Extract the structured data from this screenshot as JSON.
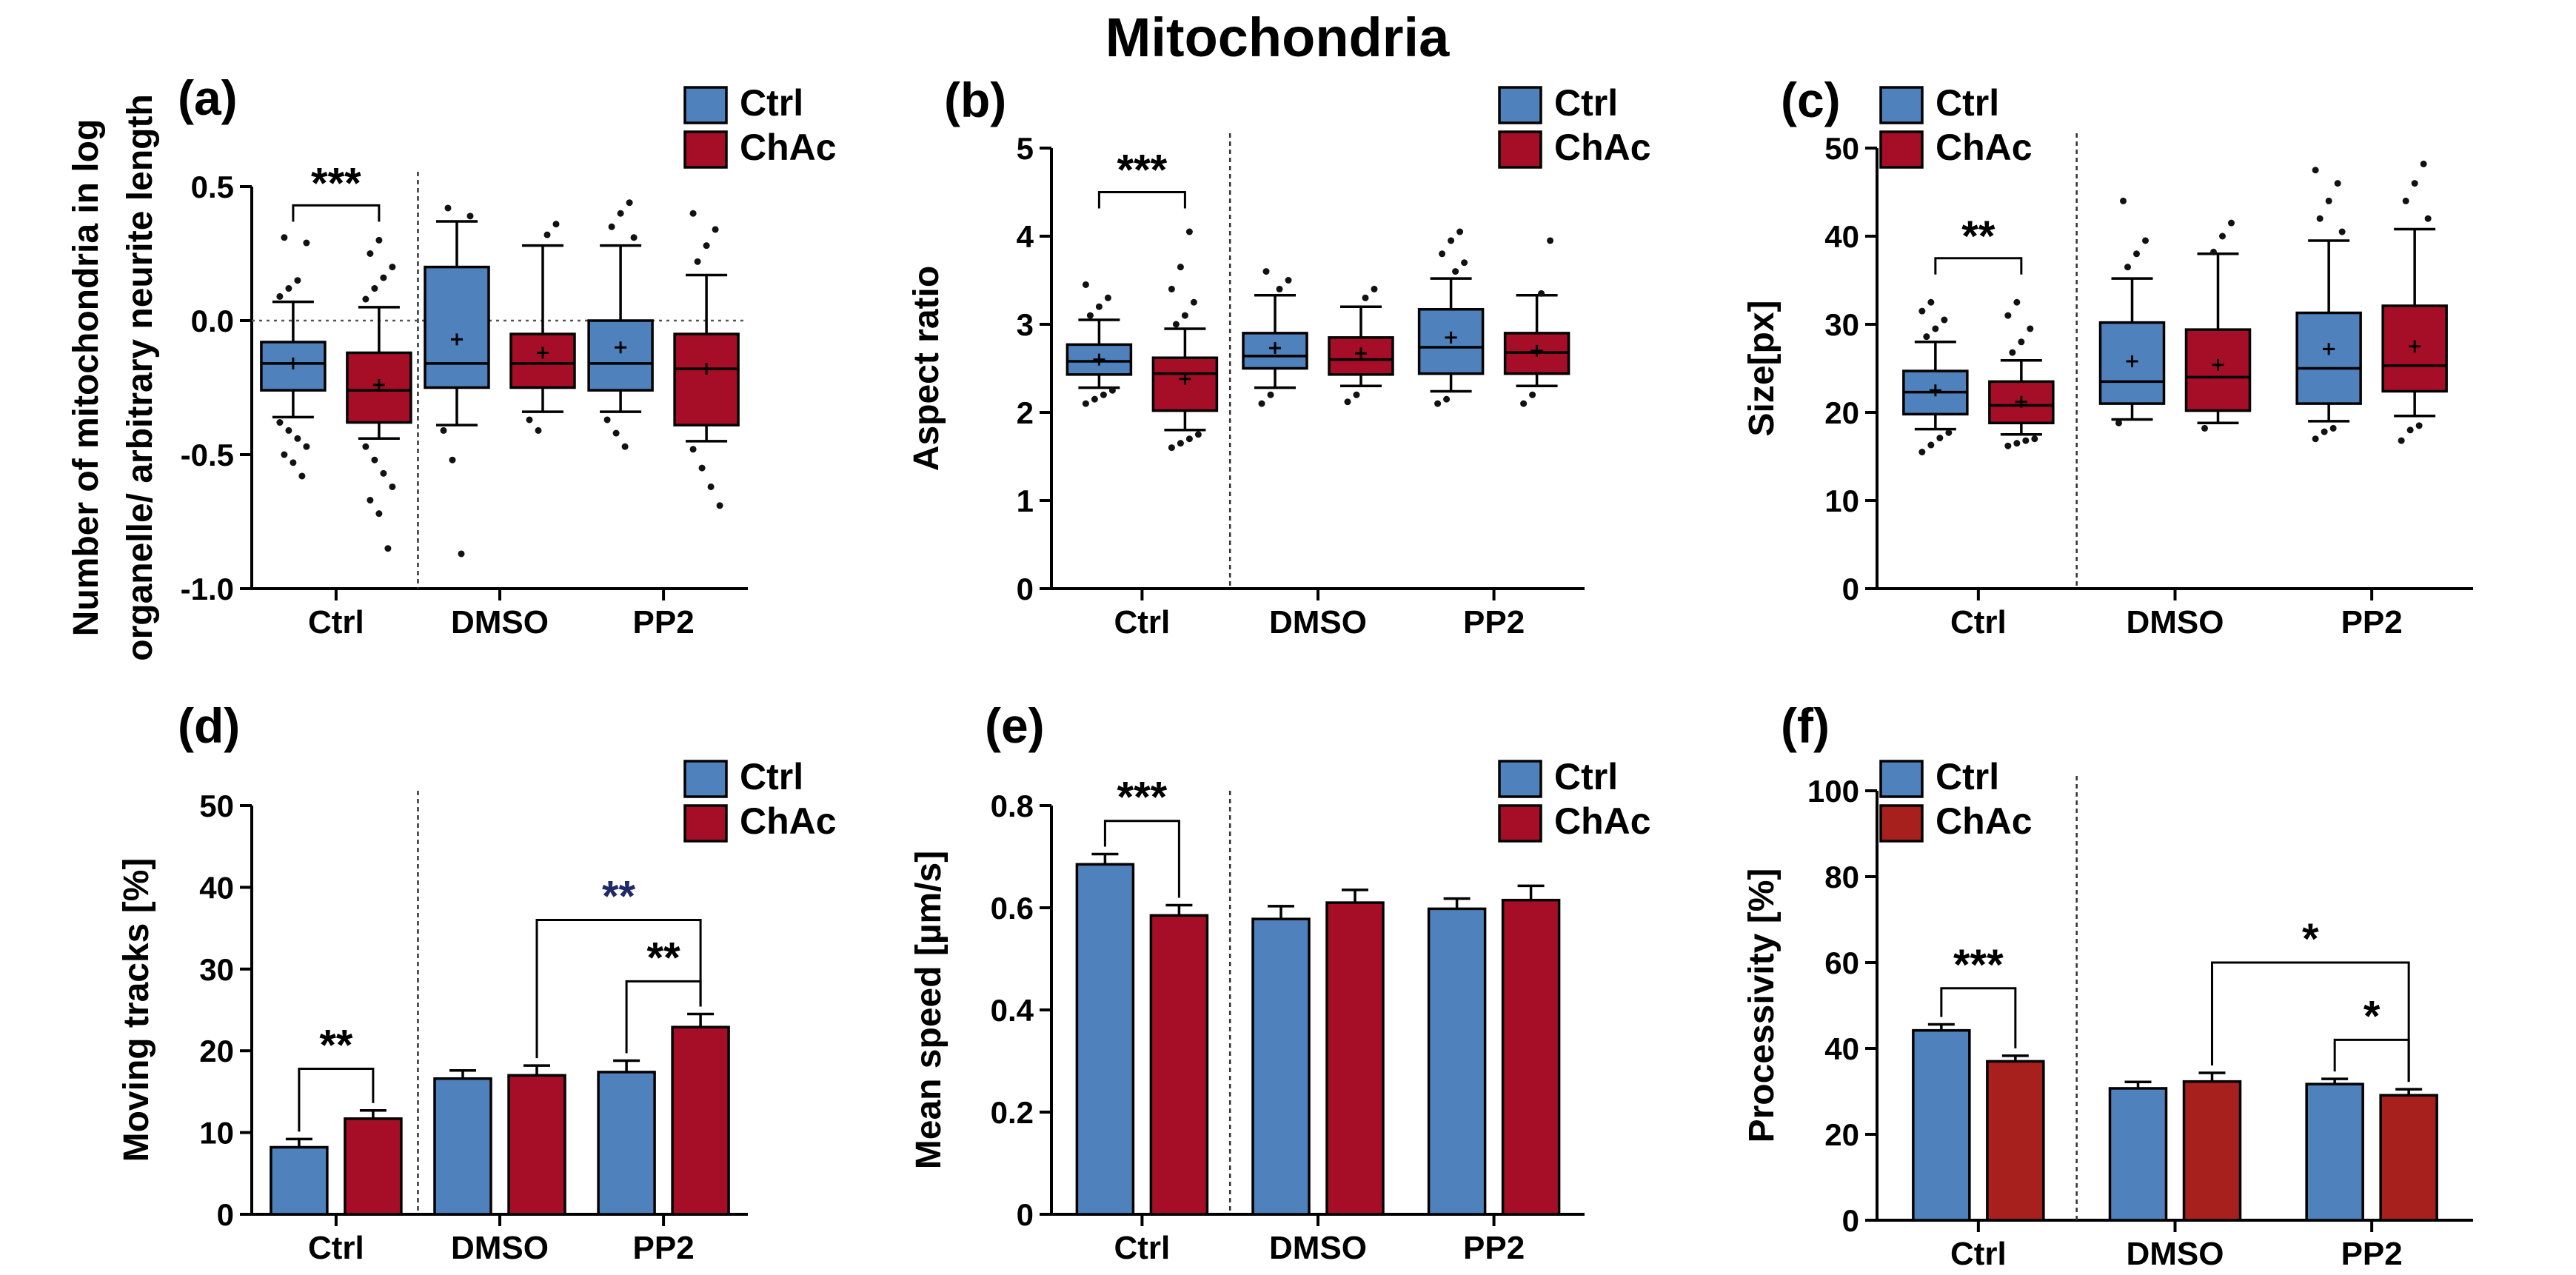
{
  "title": "Mitochondria",
  "colors": {
    "ctrl": "#4f81bd",
    "chac": "#a50e26",
    "chac_bar_f": "#a8201d",
    "dark_star": "#1f2a68",
    "axis": "#000000"
  },
  "legend": {
    "ctrl": "Ctrl",
    "chac": "ChAc"
  },
  "groups": [
    "Ctrl",
    "DMSO",
    "PP2"
  ],
  "chart_data": [
    {
      "panel": "(a)",
      "type": "box",
      "ylabel": "Number of mitochondria in log organelle/ arbitrary neurite length",
      "ylim": [
        -1.0,
        0.5
      ],
      "yticks": [
        "0.5",
        "0.0",
        "-0.5",
        "-1.0"
      ],
      "ytick_values": [
        0.5,
        0.0,
        -0.5,
        -1.0
      ],
      "reference_line": 0.0,
      "series": [
        {
          "name": "Ctrl",
          "group": "Ctrl",
          "q1": -0.26,
          "median": -0.16,
          "q3": -0.08,
          "wlo": -0.36,
          "whi": 0.07,
          "mean": -0.16,
          "outliers": [
            -0.38,
            -0.41,
            -0.44,
            -0.47,
            -0.5,
            -0.53,
            -0.58,
            0.09,
            0.12,
            0.15,
            0.29,
            0.31
          ]
        },
        {
          "name": "ChAc",
          "group": "Ctrl",
          "q1": -0.38,
          "median": -0.26,
          "q3": -0.12,
          "wlo": -0.44,
          "whi": 0.05,
          "mean": -0.24,
          "outliers": [
            -0.47,
            -0.52,
            -0.57,
            -0.62,
            -0.67,
            -0.72,
            -0.85,
            0.08,
            0.12,
            0.16,
            0.2,
            0.25,
            0.3
          ]
        },
        {
          "name": "Ctrl",
          "group": "DMSO",
          "q1": -0.25,
          "median": -0.16,
          "q3": 0.2,
          "wlo": -0.39,
          "whi": 0.37,
          "mean": -0.07,
          "outliers": [
            -0.41,
            -0.52,
            -0.87,
            0.39,
            0.42
          ]
        },
        {
          "name": "ChAc",
          "group": "DMSO",
          "q1": -0.25,
          "median": -0.16,
          "q3": -0.05,
          "wlo": -0.34,
          "whi": 0.28,
          "mean": -0.12,
          "outliers": [
            -0.37,
            -0.41,
            0.32,
            0.36
          ]
        },
        {
          "name": "Ctrl",
          "group": "PP2",
          "q1": -0.26,
          "median": -0.16,
          "q3": 0.0,
          "wlo": -0.34,
          "whi": 0.28,
          "mean": -0.1,
          "outliers": [
            -0.37,
            -0.42,
            -0.47,
            0.31,
            0.35,
            0.4,
            0.44
          ]
        },
        {
          "name": "ChAc",
          "group": "PP2",
          "q1": -0.39,
          "median": -0.18,
          "q3": -0.05,
          "wlo": -0.45,
          "whi": 0.17,
          "mean": -0.18,
          "outliers": [
            -0.48,
            -0.55,
            -0.62,
            -0.69,
            0.22,
            0.28,
            0.34,
            0.4
          ]
        }
      ],
      "annotations": [
        {
          "text": "***",
          "group": "Ctrl",
          "bracket_y": 0.43,
          "color": "#000000"
        }
      ]
    },
    {
      "panel": "(b)",
      "type": "box",
      "ylabel": "Aspect ratio",
      "ylim": [
        0,
        5
      ],
      "yticks": [
        "5",
        "4",
        "3",
        "2",
        "1",
        "0"
      ],
      "ytick_values": [
        5,
        4,
        3,
        2,
        1,
        0
      ],
      "series": [
        {
          "name": "Ctrl",
          "group": "Ctrl",
          "q1": 2.43,
          "median": 2.58,
          "q3": 2.77,
          "wlo": 2.28,
          "whi": 3.05,
          "mean": 2.6,
          "outliers": [
            2.1,
            2.15,
            2.2,
            2.25,
            3.1,
            3.2,
            3.3,
            3.45
          ]
        },
        {
          "name": "ChAc",
          "group": "Ctrl",
          "q1": 2.02,
          "median": 2.44,
          "q3": 2.62,
          "wlo": 1.8,
          "whi": 2.95,
          "mean": 2.38,
          "outliers": [
            1.6,
            1.65,
            1.7,
            1.75,
            3.0,
            3.1,
            3.25,
            3.4,
            3.65,
            4.05
          ]
        },
        {
          "name": "Ctrl",
          "group": "DMSO",
          "q1": 2.5,
          "median": 2.64,
          "q3": 2.9,
          "wlo": 2.28,
          "whi": 3.33,
          "mean": 2.73,
          "outliers": [
            2.1,
            2.2,
            3.4,
            3.5,
            3.6
          ]
        },
        {
          "name": "ChAc",
          "group": "DMSO",
          "q1": 2.43,
          "median": 2.6,
          "q3": 2.85,
          "wlo": 2.3,
          "whi": 3.2,
          "mean": 2.67,
          "outliers": [
            2.12,
            2.2,
            3.3,
            3.4
          ]
        },
        {
          "name": "Ctrl",
          "group": "PP2",
          "q1": 2.44,
          "median": 2.74,
          "q3": 3.17,
          "wlo": 2.24,
          "whi": 3.52,
          "mean": 2.85,
          "outliers": [
            2.1,
            2.15,
            3.6,
            3.7,
            3.8,
            3.95,
            4.05
          ]
        },
        {
          "name": "ChAc",
          "group": "PP2",
          "q1": 2.44,
          "median": 2.68,
          "q3": 2.9,
          "wlo": 2.3,
          "whi": 3.33,
          "mean": 2.7,
          "outliers": [
            2.1,
            2.2,
            3.35,
            3.95
          ]
        }
      ],
      "annotations": [
        {
          "text": "***",
          "group": "Ctrl",
          "bracket_y": 4.5,
          "color": "#000000"
        }
      ]
    },
    {
      "panel": "(c)",
      "type": "box",
      "ylabel": "Size[px]",
      "ylim": [
        0,
        50
      ],
      "yticks": [
        "50",
        "40",
        "30",
        "20",
        "10",
        "0"
      ],
      "ytick_values": [
        50,
        40,
        30,
        20,
        10,
        0
      ],
      "series": [
        {
          "name": "Ctrl",
          "group": "Ctrl",
          "q1": 19.8,
          "median": 22.3,
          "q3": 24.7,
          "wlo": 18.1,
          "whi": 28.0,
          "mean": 22.5,
          "outliers": [
            15.5,
            16.3,
            17.1,
            17.7,
            28.6,
            29.5,
            30.5,
            31.5,
            32.5
          ]
        },
        {
          "name": "ChAc",
          "group": "Ctrl",
          "q1": 18.8,
          "median": 20.8,
          "q3": 23.5,
          "wlo": 17.5,
          "whi": 25.9,
          "mean": 21.2,
          "outliers": [
            16.2,
            16.5,
            16.8,
            17.0,
            26.8,
            28.0,
            29.5,
            31.0,
            32.5
          ]
        },
        {
          "name": "Ctrl",
          "group": "DMSO",
          "q1": 21.0,
          "median": 23.5,
          "q3": 30.2,
          "wlo": 19.2,
          "whi": 35.2,
          "mean": 25.8,
          "outliers": [
            18.8,
            36.5,
            38.0,
            39.5,
            44.0
          ]
        },
        {
          "name": "ChAc",
          "group": "DMSO",
          "q1": 20.2,
          "median": 24.0,
          "q3": 29.4,
          "wlo": 18.8,
          "whi": 38.0,
          "mean": 25.4,
          "outliers": [
            18.2,
            38.2,
            40.0,
            41.5
          ]
        },
        {
          "name": "Ctrl",
          "group": "PP2",
          "q1": 21.0,
          "median": 25.0,
          "q3": 31.3,
          "wlo": 19.0,
          "whi": 39.5,
          "mean": 27.2,
          "outliers": [
            17.0,
            17.8,
            18.2,
            40.5,
            42.0,
            44.0,
            46.0,
            47.5
          ]
        },
        {
          "name": "ChAc",
          "group": "PP2",
          "q1": 22.4,
          "median": 25.3,
          "q3": 32.1,
          "wlo": 19.6,
          "whi": 40.8,
          "mean": 27.5,
          "outliers": [
            16.8,
            18.0,
            18.5,
            42.0,
            44.0,
            46.0,
            48.2
          ]
        }
      ],
      "annotations": [
        {
          "text": "**",
          "group": "Ctrl",
          "bracket_y": 37.5,
          "color": "#000000"
        }
      ]
    },
    {
      "panel": "(d)",
      "type": "bar",
      "ylabel": "Moving tracks [%]",
      "ylim": [
        0,
        50
      ],
      "yticks": [
        "50",
        "40",
        "30",
        "20",
        "10",
        "0"
      ],
      "ytick_values": [
        50,
        40,
        30,
        20,
        10,
        0
      ],
      "series": [
        {
          "name": "Ctrl",
          "values": [
            8.2,
            16.6,
            17.4
          ],
          "errors": [
            1.0,
            1.0,
            1.4
          ]
        },
        {
          "name": "ChAc",
          "values": [
            11.7,
            17.0,
            22.9
          ],
          "errors": [
            1.0,
            1.2,
            1.6
          ]
        }
      ],
      "annotations": [
        {
          "text": "**",
          "from": [
            0,
            0
          ],
          "to": [
            0,
            1
          ],
          "bracket_y": 17.8,
          "color": "#000000"
        },
        {
          "text": "**",
          "from": [
            2,
            0
          ],
          "to": [
            2,
            1
          ],
          "bracket_y": 28.5,
          "color": "#000000"
        },
        {
          "text": "**",
          "from": [
            1,
            1
          ],
          "to": [
            2,
            1
          ],
          "bracket_y": 36.0,
          "color": "#1f2a68"
        }
      ]
    },
    {
      "panel": "(e)",
      "type": "bar",
      "ylabel": "Mean speed [µm/s]",
      "ylim": [
        0,
        0.8
      ],
      "yticks": [
        "0.8",
        "0.6",
        "0.4",
        "0.2",
        "0"
      ],
      "ytick_values": [
        0.8,
        0.6,
        0.4,
        0.2,
        0
      ],
      "series": [
        {
          "name": "Ctrl",
          "values": [
            0.685,
            0.578,
            0.598
          ],
          "errors": [
            0.02,
            0.025,
            0.02
          ]
        },
        {
          "name": "ChAc",
          "values": [
            0.585,
            0.61,
            0.615
          ],
          "errors": [
            0.02,
            0.025,
            0.028
          ]
        }
      ],
      "annotations": [
        {
          "text": "***",
          "from": [
            0,
            0
          ],
          "to": [
            0,
            1
          ],
          "bracket_y": 0.77,
          "color": "#000000"
        }
      ]
    },
    {
      "panel": "(f)",
      "type": "bar",
      "ylabel": "Processivity [%]",
      "ylim": [
        0,
        100
      ],
      "yticks": [
        "100",
        "80",
        "60",
        "40",
        "20",
        "0"
      ],
      "ytick_values": [
        100,
        80,
        60,
        40,
        20,
        0
      ],
      "series": [
        {
          "name": "Ctrl",
          "values": [
            44.2,
            30.7,
            31.7
          ],
          "errors": [
            1.4,
            1.5,
            1.2
          ]
        },
        {
          "name": "ChAc",
          "values": [
            37.0,
            32.3,
            29.1
          ],
          "errors": [
            1.3,
            2.0,
            1.4
          ]
        }
      ],
      "annotations": [
        {
          "text": "***",
          "from": [
            0,
            0
          ],
          "to": [
            0,
            1
          ],
          "bracket_y": 54.0,
          "color": "#000000"
        },
        {
          "text": "*",
          "from": [
            2,
            0
          ],
          "to": [
            2,
            1
          ],
          "bracket_y": 42.0,
          "color": "#000000"
        },
        {
          "text": "*",
          "from": [
            1,
            1
          ],
          "to": [
            2,
            1
          ],
          "bracket_y": 60.0,
          "color": "#000000"
        }
      ]
    }
  ]
}
